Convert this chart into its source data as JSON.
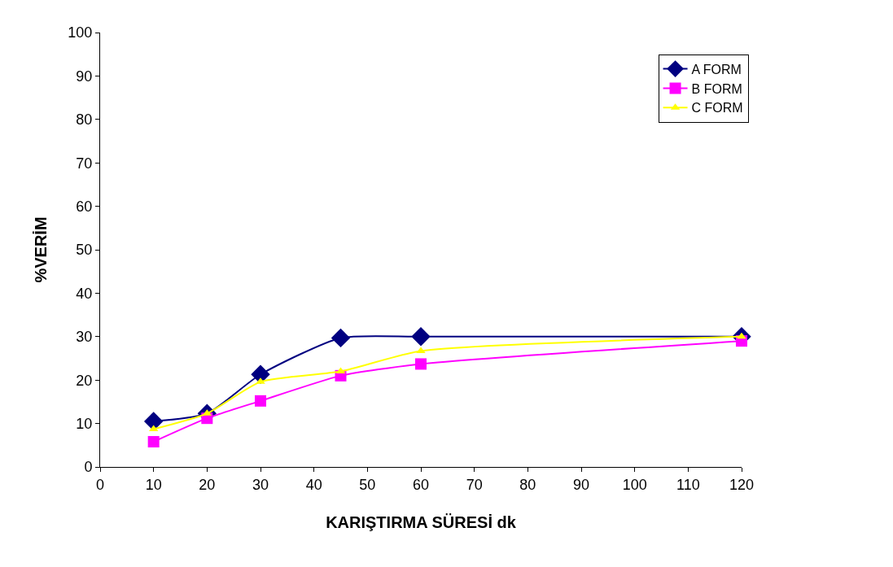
{
  "chart_data": {
    "type": "line",
    "xlabel": "KARIŞTIRMA SÜRESİ dk",
    "ylabel": "%VERİM",
    "x": [
      10,
      20,
      30,
      45,
      60,
      120
    ],
    "series": [
      {
        "name": "A FORM",
        "color": "#000080",
        "marker": "diamond",
        "values": [
          10.5,
          12.3,
          21.3,
          29.7,
          30,
          30
        ]
      },
      {
        "name": "B FORM",
        "color": "#ff00ff",
        "marker": "square",
        "values": [
          5.8,
          11.2,
          15.2,
          21,
          23.7,
          29
        ]
      },
      {
        "name": "C FORM",
        "color": "#ffff00",
        "marker": "triangle",
        "values": [
          8.7,
          12.3,
          19.6,
          22,
          26.7,
          30
        ]
      }
    ],
    "xlim": [
      0,
      120
    ],
    "xticks": [
      0,
      10,
      20,
      30,
      40,
      50,
      60,
      70,
      80,
      90,
      100,
      110,
      120
    ],
    "ylim": [
      0,
      100
    ],
    "yticks": [
      0,
      10,
      20,
      30,
      40,
      50,
      60,
      70,
      80,
      90,
      100
    ],
    "legend": "top right",
    "line_style": "solid"
  }
}
